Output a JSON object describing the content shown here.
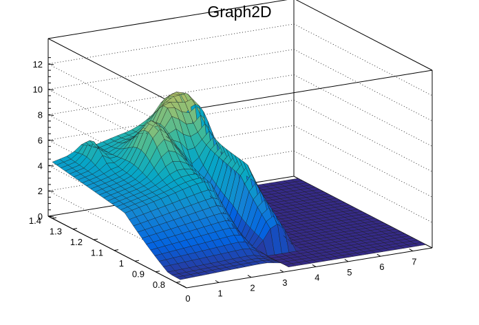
{
  "chart_data": {
    "type": "surface",
    "title": "Graph2D",
    "xlabel": "",
    "ylabel": "",
    "zlabel": "",
    "xlim": [
      0,
      7.6
    ],
    "ylim": [
      0.75,
      1.42
    ],
    "zlim": [
      0,
      13
    ],
    "x_ticks": [
      "0",
      "1",
      "2",
      "3",
      "4",
      "5",
      "6",
      "7"
    ],
    "y_ticks": [
      "0.8",
      "0.9",
      "1",
      "1.1",
      "1.2",
      "1.3",
      "1.4"
    ],
    "z_ticks": [
      "0",
      "2",
      "4",
      "6",
      "8",
      "10",
      "12"
    ],
    "grid": true,
    "palette": [
      "#352a87",
      "#0363e1",
      "#1485d4",
      "#06a7c6",
      "#38b99e",
      "#92bf73",
      "#d9ba56",
      "#fcce2e",
      "#f9fb0e"
    ],
    "surface_features": [
      {
        "x": 0.2,
        "y": 1.38,
        "z": 3.8
      },
      {
        "x": 1.0,
        "y": 1.35,
        "z": 5.1
      },
      {
        "x": 2.0,
        "y": 1.25,
        "z": 7.8
      },
      {
        "x": 3.0,
        "y": 1.3,
        "z": 10.0
      },
      {
        "x": 3.5,
        "y": 1.35,
        "z": 10.5
      },
      {
        "x": 4.2,
        "y": 1.3,
        "z": 12.8
      },
      {
        "x": 2.0,
        "y": 0.85,
        "z": 1.2
      },
      {
        "x": 3.2,
        "y": 0.8,
        "z": 0.0
      },
      {
        "x": 5.5,
        "y": 0.9,
        "z": 0.0
      }
    ]
  }
}
